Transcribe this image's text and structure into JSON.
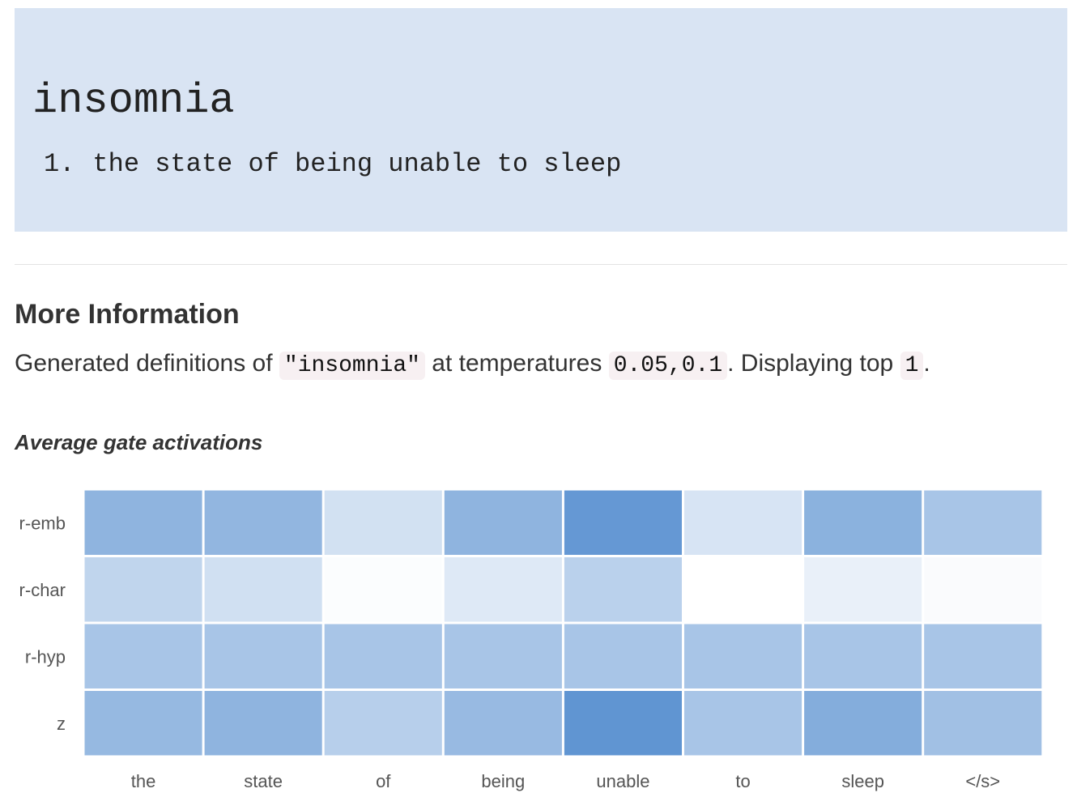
{
  "entry": {
    "word": "insomnia",
    "definitions": [
      {
        "number": "1.",
        "text": "the state of being unable to sleep"
      }
    ]
  },
  "more_info": {
    "heading": "More Information",
    "text_before_word": "Generated definitions of ",
    "word_code": "\"insomnia\"",
    "text_before_temps": " at temperatures ",
    "temperatures_code": "0.05,0.1",
    "text_before_top": ". Displaying top ",
    "top_code": "1",
    "text_end": "."
  },
  "chart_title": "Average gate activations",
  "chart_data": {
    "type": "heatmap",
    "title": "Average gate activations",
    "xlabel": "",
    "ylabel": "",
    "columns": [
      "the",
      "state",
      "of",
      "being",
      "unable",
      "to",
      "sleep",
      "</s>"
    ],
    "rows": [
      "r-emb",
      "r-char",
      "r-hyp",
      "z"
    ],
    "values": [
      [
        0.62,
        0.6,
        0.25,
        0.62,
        0.85,
        0.22,
        0.64,
        0.48
      ],
      [
        0.35,
        0.26,
        0.02,
        0.18,
        0.38,
        0.0,
        0.12,
        0.03
      ],
      [
        0.48,
        0.48,
        0.48,
        0.48,
        0.48,
        0.48,
        0.48,
        0.48
      ],
      [
        0.58,
        0.62,
        0.4,
        0.57,
        0.88,
        0.48,
        0.68,
        0.52
      ]
    ],
    "color_scale": {
      "low": "#ffffff",
      "high": "#4a86cc"
    },
    "grid_color": "#ffffff"
  }
}
